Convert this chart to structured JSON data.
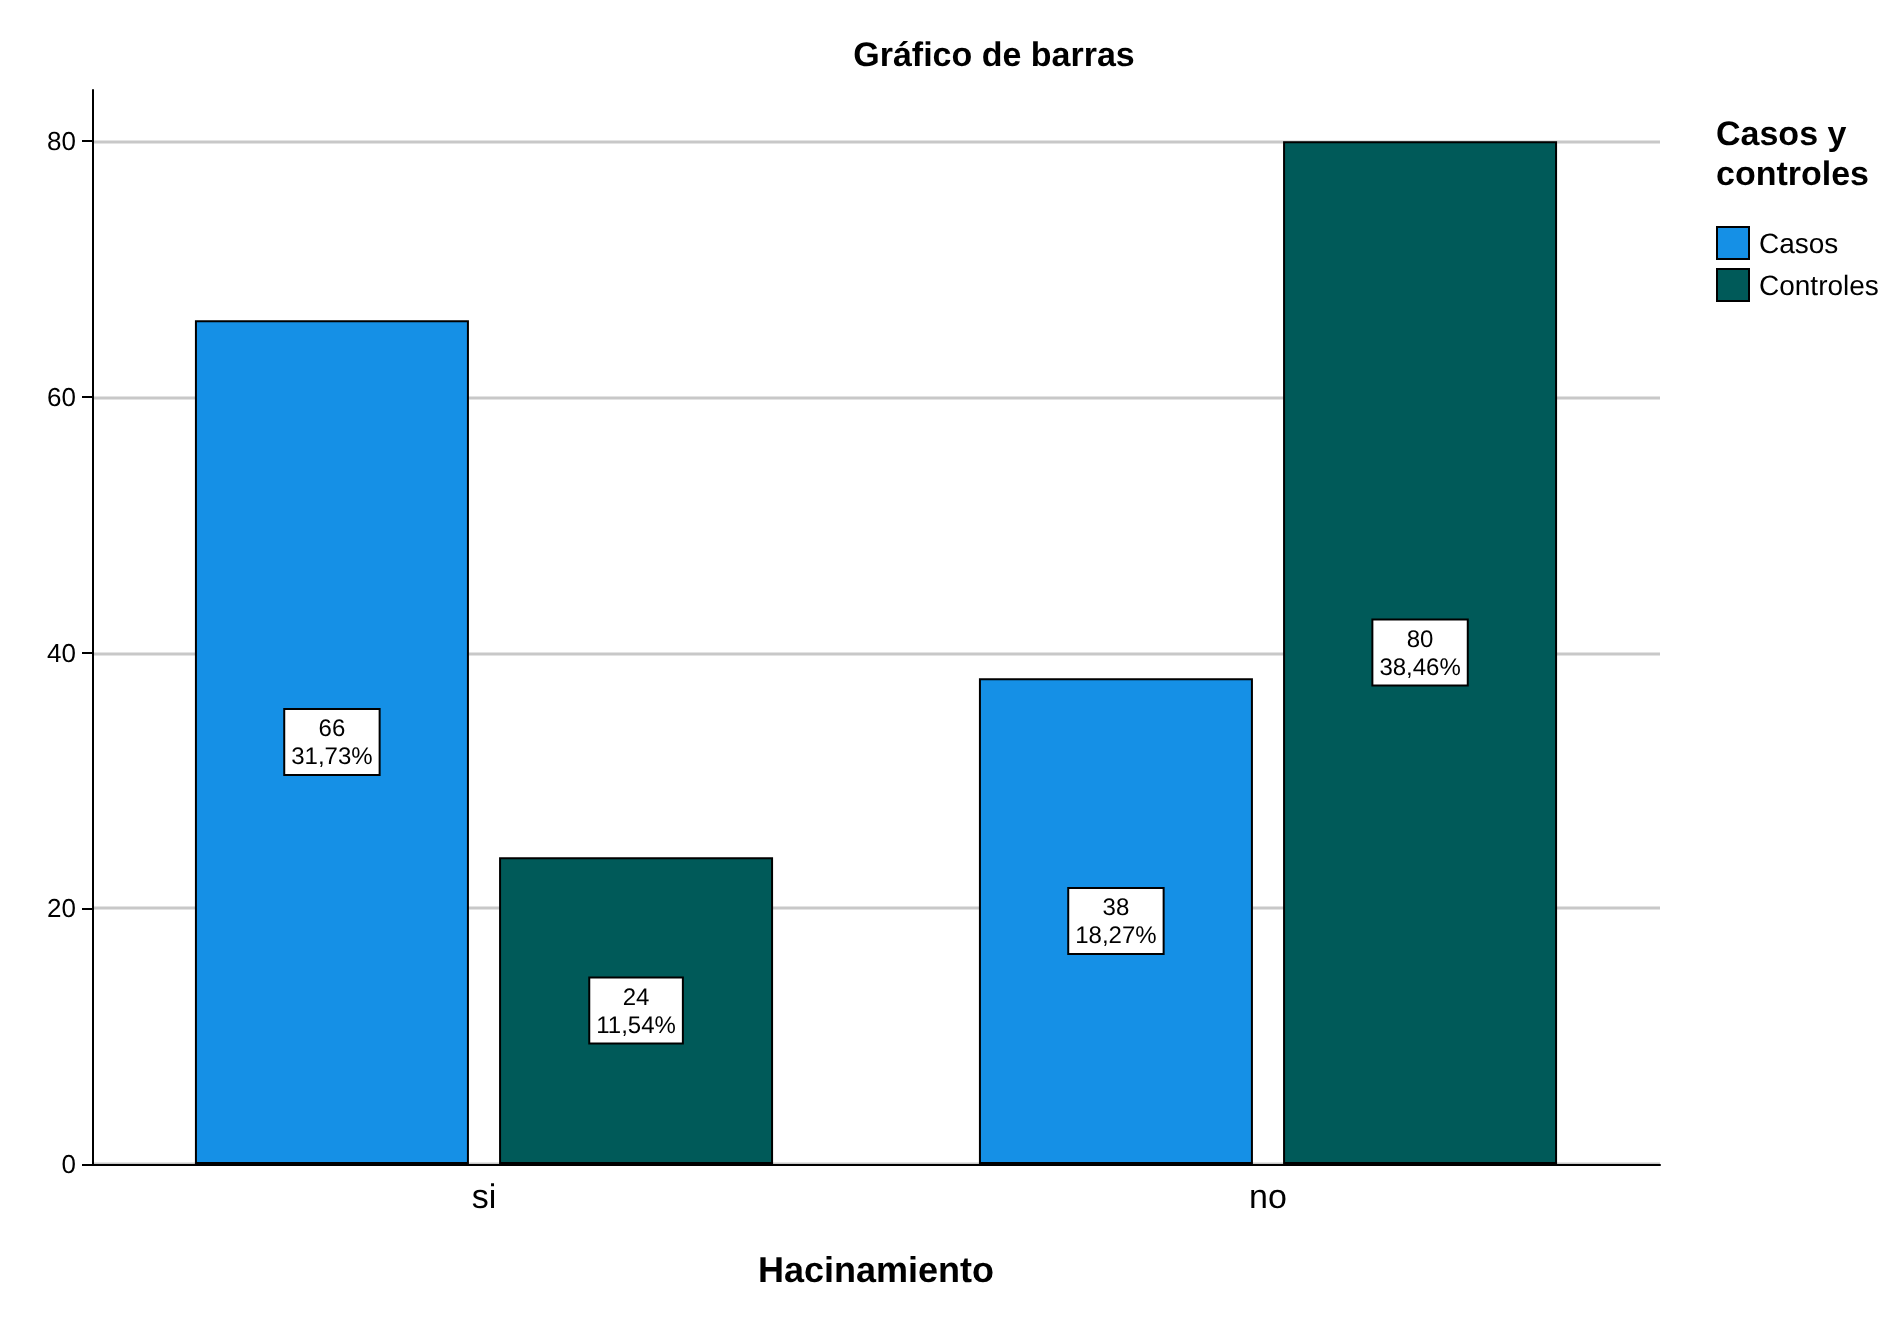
{
  "chart_data": {
    "type": "bar",
    "title": "Gráfico de barras",
    "xlabel": "Hacinamiento",
    "legend_title": "Casos y\ncontroles",
    "categories": [
      "si",
      "no"
    ],
    "series": [
      {
        "name": "Casos",
        "color": "#1590e6",
        "values": [
          66,
          38
        ],
        "value_labels": [
          "66\n31,73%",
          "38\n18,27%"
        ]
      },
      {
        "name": "Controles",
        "color": "#005a59",
        "values": [
          24,
          80
        ],
        "value_labels": [
          "24\n11,54%",
          "80\n38,46%"
        ]
      }
    ],
    "ylim": [
      0,
      84
    ],
    "yticks": [
      0,
      20,
      40,
      60,
      80
    ],
    "grid": "y",
    "legend": "right"
  }
}
